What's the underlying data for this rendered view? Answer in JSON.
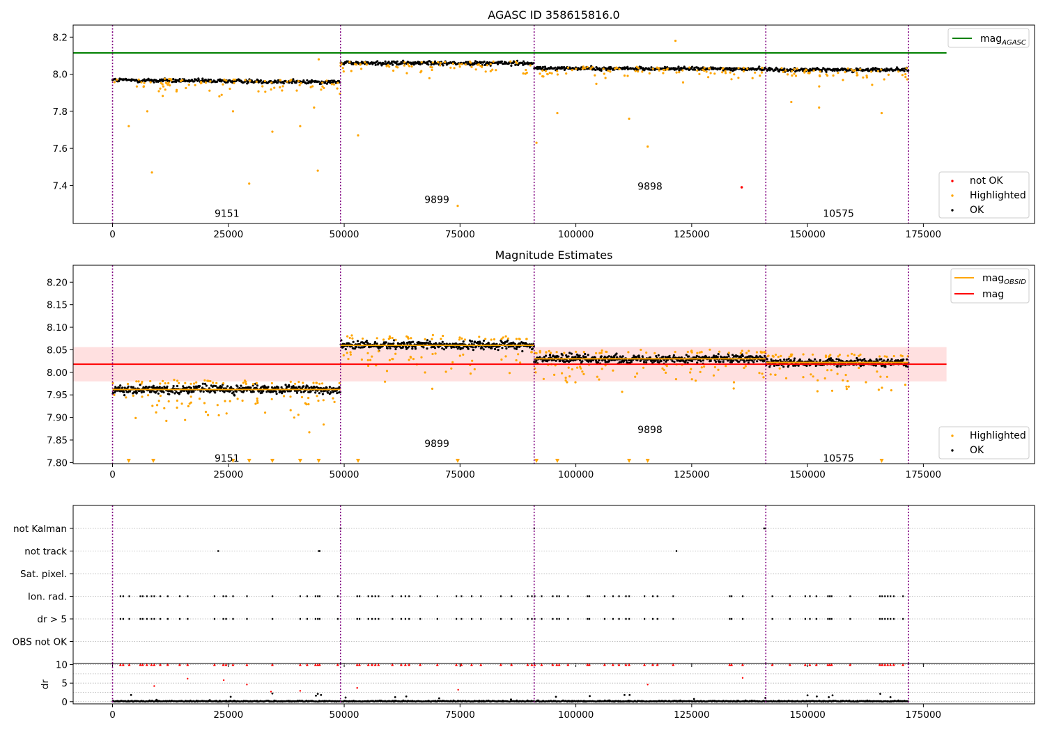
{
  "chart_data": [
    {
      "type": "scatter",
      "title": "AGASC ID 358615816.0",
      "xlim": [
        -8500,
        199000
      ],
      "ylim": [
        7.195,
        8.265
      ],
      "xticks": [
        0,
        25000,
        50000,
        75000,
        100000,
        125000,
        150000,
        175000
      ],
      "yticks": [
        7.4,
        7.6,
        7.8,
        8.0,
        8.2
      ],
      "ytick_labels": [
        "7.4",
        "7.6",
        "7.8",
        "8.0",
        "8.2"
      ],
      "mag_agasc": 8.115,
      "boundaries": [
        0,
        49200,
        91000,
        141000,
        171800
      ],
      "segments": [
        {
          "obsid": "9151",
          "x0": 0,
          "x1": 49200,
          "mean": 7.968,
          "spread": 0.012,
          "trend": -0.01,
          "label_x": 24700,
          "label_y": 7.25
        },
        {
          "obsid": "9899",
          "x0": 49200,
          "x1": 91000,
          "mean": 8.06,
          "spread": 0.012,
          "trend": 0.0,
          "label_x": 70000,
          "label_y": 7.325
        },
        {
          "obsid": "9898",
          "x0": 91000,
          "x1": 141000,
          "mean": 8.032,
          "spread": 0.01,
          "trend": -0.004,
          "label_x": 116000,
          "label_y": 7.395
        },
        {
          "obsid": "10575",
          "x0": 141000,
          "x1": 171800,
          "mean": 8.024,
          "spread": 0.01,
          "trend": 0.0,
          "label_x": 156700,
          "label_y": 7.25
        }
      ],
      "highlighted_outliers": [
        [
          3500,
          7.72
        ],
        [
          8500,
          7.47
        ],
        [
          29500,
          7.41
        ],
        [
          34500,
          7.69
        ],
        [
          40500,
          7.72
        ],
        [
          44300,
          7.48
        ],
        [
          44500,
          8.08
        ],
        [
          43500,
          7.82
        ],
        [
          7500,
          7.8
        ],
        [
          26000,
          7.8
        ],
        [
          53000,
          7.67
        ],
        [
          74500,
          7.29
        ],
        [
          96000,
          7.79
        ],
        [
          111500,
          7.76
        ],
        [
          115500,
          7.61
        ],
        [
          121500,
          8.18
        ],
        [
          91500,
          7.63
        ],
        [
          166000,
          7.79
        ],
        [
          152500,
          7.82
        ],
        [
          146500,
          7.85
        ]
      ],
      "not_ok_points": [
        [
          135800,
          7.39
        ]
      ],
      "legend_upper": [
        "mag$_{AGASC}$"
      ],
      "legend_lower": [
        "not OK",
        "Highlighted",
        "OK"
      ],
      "colors": {
        "ok": "#000000",
        "highlighted": "#ffa500",
        "not_ok": "#ff0000",
        "agasc_line": "#008000",
        "boundary": "#800080"
      }
    },
    {
      "type": "scatter",
      "title": "Magnitude Estimates",
      "xlim": [
        -8500,
        199000
      ],
      "ylim": [
        7.7975,
        8.2375
      ],
      "xticks": [
        0,
        25000,
        50000,
        75000,
        100000,
        125000,
        150000,
        175000
      ],
      "yticks": [
        7.8,
        7.85,
        7.9,
        7.95,
        8.0,
        8.05,
        8.1,
        8.15,
        8.2
      ],
      "ytick_labels": [
        "7.80",
        "7.85",
        "7.90",
        "7.95",
        "8.00",
        "8.05",
        "8.10",
        "8.15",
        "8.20"
      ],
      "mag": 8.018,
      "mag_band": [
        7.98,
        8.056
      ],
      "obsid_means": [
        7.962,
        8.06,
        8.03,
        8.022
      ],
      "segment_labels": [
        {
          "text": "9151",
          "x": 24700,
          "y": 7.81
        },
        {
          "text": "9899",
          "x": 70000,
          "y": 7.842
        },
        {
          "text": "9898",
          "x": 116000,
          "y": 7.873
        },
        {
          "text": "10575",
          "x": 156700,
          "y": 7.81
        }
      ],
      "clipped_markers_x": [
        3500,
        8800,
        26000,
        29500,
        34500,
        40500,
        44500,
        53000,
        74500,
        91500,
        96000,
        111500,
        115500,
        166000
      ],
      "legend_upper": [
        "mag$_{OBSID}$",
        "mag"
      ],
      "legend_lower": [
        "Highlighted",
        "OK"
      ],
      "colors": {
        "ok": "#000000",
        "highlighted": "#ffa500",
        "mag_line": "#ff0000",
        "obsid_line": "#ffa500",
        "band": "#ffcccc",
        "boundary": "#800080"
      }
    },
    {
      "type": "scatter",
      "title": "",
      "xlim": [
        -8500,
        199000
      ],
      "xticks": [
        0,
        25000,
        50000,
        75000,
        100000,
        125000,
        150000,
        175000
      ],
      "flag_labels": [
        "not Kalman",
        "not track",
        "Sat. pixel.",
        "Ion. rad.",
        "dr > 5",
        "OBS not OK"
      ],
      "flag_events": {
        "not Kalman": [
          49200,
          91000,
          140600,
          140900
        ],
        "not track": [
          22800,
          44500,
          44700,
          121700
        ],
        "Sat. pixel.": [],
        "Ion. rad.": [
          1700,
          2300,
          3600,
          6000,
          6500,
          7400,
          8400,
          9000,
          10300,
          11900,
          14500,
          16200,
          22000,
          23900,
          24500,
          26000,
          29000,
          34500,
          40500,
          42000,
          43800,
          44300,
          44700,
          48600,
          52800,
          53300,
          55200,
          56000,
          56700,
          57400,
          60400,
          62300,
          63200,
          64000,
          66400,
          70100,
          74200,
          75300,
          77500,
          79500,
          83800,
          86100,
          89600,
          90500,
          91100,
          92600,
          95000,
          95900,
          96400,
          98300,
          102500,
          102900,
          106200,
          108000,
          109300,
          110800,
          111500,
          114800,
          116600,
          117600,
          121000,
          133200,
          133600,
          136000,
          142400,
          146200,
          149500,
          150500,
          151900,
          154400,
          154800,
          155200,
          159200,
          165600,
          166100,
          166700,
          167300,
          167900,
          168600,
          170600
        ],
        "dr > 5": [
          1700,
          2300,
          3600,
          6000,
          6500,
          7400,
          8400,
          9000,
          10300,
          11900,
          14500,
          16200,
          22000,
          23900,
          24500,
          26000,
          29000,
          34500,
          40500,
          42000,
          43800,
          44300,
          44700,
          48600,
          52800,
          53300,
          55200,
          56000,
          56700,
          57400,
          60400,
          62300,
          63200,
          64000,
          66400,
          70100,
          74200,
          75300,
          77500,
          79500,
          83800,
          86100,
          89600,
          90500,
          91100,
          92600,
          95000,
          95900,
          96400,
          98300,
          102500,
          102900,
          106200,
          108000,
          109300,
          110800,
          111500,
          114800,
          116600,
          117600,
          121000,
          133200,
          133600,
          136000,
          142400,
          146200,
          149500,
          150500,
          151900,
          154400,
          154800,
          155200,
          159200,
          165600,
          166100,
          166700,
          167300,
          167900,
          168600,
          170600
        ],
        "OBS not OK": []
      },
      "colors": {
        "marker": "#000000",
        "grid": "#b0b0b0",
        "boundary": "#800080"
      }
    },
    {
      "type": "scatter",
      "title": "",
      "ylabel": "dr",
      "xlim": [
        -8500,
        199000
      ],
      "ylim": [
        -0.6,
        10.3
      ],
      "xticks": [
        0,
        25000,
        50000,
        75000,
        100000,
        125000,
        150000,
        175000
      ],
      "xtick_labels": [
        "0",
        "25000",
        "50000",
        "75000",
        "100000",
        "125000",
        "150000",
        "175000"
      ],
      "yticks": [
        0,
        5,
        10
      ],
      "ytick_labels": [
        "0",
        "5",
        "10"
      ],
      "clipped_y": 10,
      "red_points": [
        [
          9000,
          4.2
        ],
        [
          16200,
          6.2
        ],
        [
          24000,
          5.8
        ],
        [
          29000,
          4.6
        ],
        [
          34200,
          2.7
        ],
        [
          40500,
          2.9
        ],
        [
          52800,
          3.7
        ],
        [
          74600,
          3.2
        ],
        [
          115500,
          4.6
        ],
        [
          136000,
          6.4
        ]
      ],
      "dark_points": [
        [
          4000,
          1.8
        ],
        [
          9500,
          0.5
        ],
        [
          21000,
          0.4
        ],
        [
          25500,
          1.3
        ],
        [
          34500,
          2.2
        ],
        [
          43900,
          1.6
        ],
        [
          44300,
          2.1
        ],
        [
          45000,
          1.8
        ],
        [
          50300,
          1.1
        ],
        [
          61000,
          1.2
        ],
        [
          63400,
          1.4
        ],
        [
          70500,
          0.9
        ],
        [
          86000,
          0.6
        ],
        [
          95700,
          1.3
        ],
        [
          103000,
          1.5
        ],
        [
          110500,
          1.8
        ],
        [
          111600,
          1.8
        ],
        [
          125500,
          0.7
        ],
        [
          140900,
          1.0
        ],
        [
          150000,
          1.7
        ],
        [
          152000,
          1.4
        ],
        [
          154600,
          1.2
        ],
        [
          155400,
          1.7
        ],
        [
          165700,
          2.1
        ],
        [
          167900,
          1.2
        ]
      ],
      "colors": {
        "ok": "#000000",
        "clipped": "#ff0000",
        "boundary": "#800080",
        "grid": "#b0b0b0"
      }
    }
  ]
}
